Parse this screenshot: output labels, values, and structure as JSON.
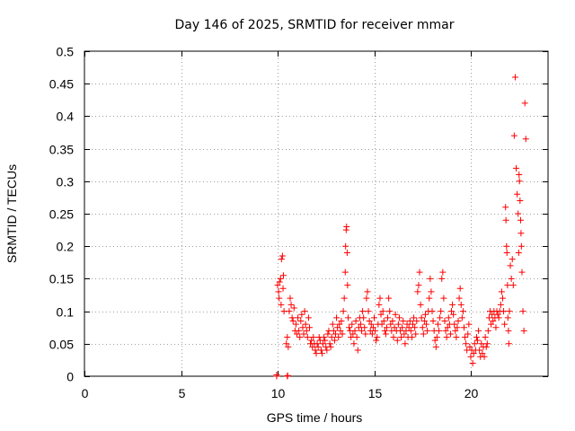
{
  "chart_data": {
    "type": "scatter",
    "title": "Day 146 of 2025, SRMTID for receiver mmar",
    "xlabel": "GPS time / hours",
    "ylabel": "SRMTID / TECUs",
    "xlim": [
      0,
      24
    ],
    "ylim": [
      0,
      0.5
    ],
    "x_ticks": [
      0,
      5,
      10,
      15,
      20
    ],
    "y_ticks": [
      0,
      0.05,
      0.1,
      0.15,
      0.2,
      0.25,
      0.3,
      0.35,
      0.4,
      0.45,
      0.5
    ],
    "x_tick_labels": [
      "0",
      "5",
      "10",
      "15",
      "20"
    ],
    "y_tick_labels": [
      "0",
      "0.05",
      "0.1",
      "0.15",
      "0.2",
      "0.25",
      "0.3",
      "0.35",
      "0.4",
      "0.45",
      "0.5"
    ],
    "grid": true,
    "marker": "+",
    "color": "#ff0000",
    "series": [
      {
        "name": "SRMTID",
        "points": [
          [
            9.95,
            0.0
          ],
          [
            10.5,
            0.0
          ],
          [
            9.95,
            0.002
          ],
          [
            10.52,
            0.001
          ],
          [
            10.0,
            0.14
          ],
          [
            10.05,
            0.13
          ],
          [
            10.1,
            0.145
          ],
          [
            10.15,
            0.15
          ],
          [
            10.2,
            0.18
          ],
          [
            10.25,
            0.185
          ],
          [
            10.3,
            0.155
          ],
          [
            10.08,
            0.12
          ],
          [
            10.18,
            0.11
          ],
          [
            10.28,
            0.135
          ],
          [
            10.33,
            0.1
          ],
          [
            10.45,
            0.05
          ],
          [
            10.5,
            0.06
          ],
          [
            10.55,
            0.045
          ],
          [
            10.6,
            0.1
          ],
          [
            10.65,
            0.12
          ],
          [
            10.7,
            0.11
          ],
          [
            10.75,
            0.09
          ],
          [
            10.8,
            0.085
          ],
          [
            10.85,
            0.105
          ],
          [
            10.9,
            0.07
          ],
          [
            10.95,
            0.08
          ],
          [
            11.0,
            0.065
          ],
          [
            11.05,
            0.09
          ],
          [
            11.1,
            0.07
          ],
          [
            11.15,
            0.06
          ],
          [
            11.2,
            0.085
          ],
          [
            11.25,
            0.095
          ],
          [
            11.3,
            0.075
          ],
          [
            11.35,
            0.065
          ],
          [
            11.4,
            0.1
          ],
          [
            11.45,
            0.08
          ],
          [
            11.5,
            0.07
          ],
          [
            11.55,
            0.06
          ],
          [
            11.6,
            0.09
          ],
          [
            11.65,
            0.075
          ],
          [
            11.7,
            0.05
          ],
          [
            11.75,
            0.055
          ],
          [
            11.8,
            0.045
          ],
          [
            11.85,
            0.06
          ],
          [
            11.9,
            0.05
          ],
          [
            11.95,
            0.04
          ],
          [
            12.0,
            0.035
          ],
          [
            12.05,
            0.05
          ],
          [
            12.1,
            0.045
          ],
          [
            12.15,
            0.06
          ],
          [
            12.2,
            0.055
          ],
          [
            12.25,
            0.04
          ],
          [
            12.3,
            0.035
          ],
          [
            12.35,
            0.05
          ],
          [
            12.4,
            0.06
          ],
          [
            12.45,
            0.055
          ],
          [
            12.5,
            0.045
          ],
          [
            12.55,
            0.04
          ],
          [
            12.6,
            0.065
          ],
          [
            12.65,
            0.07
          ],
          [
            12.7,
            0.05
          ],
          [
            12.75,
            0.045
          ],
          [
            12.8,
            0.06
          ],
          [
            12.85,
            0.08
          ],
          [
            12.9,
            0.07
          ],
          [
            12.95,
            0.055
          ],
          [
            13.0,
            0.065
          ],
          [
            13.05,
            0.09
          ],
          [
            13.1,
            0.075
          ],
          [
            13.15,
            0.06
          ],
          [
            13.2,
            0.08
          ],
          [
            13.25,
            0.07
          ],
          [
            13.3,
            0.085
          ],
          [
            13.35,
            0.065
          ],
          [
            13.4,
            0.1
          ],
          [
            13.45,
            0.12
          ],
          [
            13.5,
            0.16
          ],
          [
            13.52,
            0.2
          ],
          [
            13.55,
            0.225
          ],
          [
            13.57,
            0.23
          ],
          [
            13.6,
            0.19
          ],
          [
            13.62,
            0.14
          ],
          [
            13.65,
            0.09
          ],
          [
            13.7,
            0.075
          ],
          [
            13.75,
            0.07
          ],
          [
            13.8,
            0.06
          ],
          [
            13.85,
            0.08
          ],
          [
            13.9,
            0.065
          ],
          [
            13.95,
            0.05
          ],
          [
            14.0,
            0.07
          ],
          [
            14.05,
            0.085
          ],
          [
            14.1,
            0.06
          ],
          [
            14.15,
            0.04
          ],
          [
            14.2,
            0.075
          ],
          [
            14.25,
            0.09
          ],
          [
            14.3,
            0.08
          ],
          [
            14.35,
            0.07
          ],
          [
            14.4,
            0.1
          ],
          [
            14.45,
            0.09
          ],
          [
            14.5,
            0.075
          ],
          [
            14.55,
            0.065
          ],
          [
            14.6,
            0.12
          ],
          [
            14.65,
            0.13
          ],
          [
            14.7,
            0.1
          ],
          [
            14.75,
            0.085
          ],
          [
            14.8,
            0.07
          ],
          [
            14.85,
            0.08
          ],
          [
            14.9,
            0.065
          ],
          [
            14.95,
            0.075
          ],
          [
            15.0,
            0.09
          ],
          [
            15.05,
            0.07
          ],
          [
            15.1,
            0.055
          ],
          [
            15.15,
            0.06
          ],
          [
            15.2,
            0.08
          ],
          [
            15.25,
            0.11
          ],
          [
            15.3,
            0.12
          ],
          [
            15.35,
            0.095
          ],
          [
            15.4,
            0.08
          ],
          [
            15.45,
            0.1
          ],
          [
            15.5,
            0.085
          ],
          [
            15.55,
            0.07
          ],
          [
            15.6,
            0.065
          ],
          [
            15.65,
            0.075
          ],
          [
            15.7,
            0.09
          ],
          [
            15.75,
            0.12
          ],
          [
            15.8,
            0.1
          ],
          [
            15.85,
            0.08
          ],
          [
            15.9,
            0.07
          ],
          [
            15.95,
            0.085
          ],
          [
            16.0,
            0.06
          ],
          [
            16.05,
            0.075
          ],
          [
            16.1,
            0.095
          ],
          [
            16.15,
            0.07
          ],
          [
            16.2,
            0.055
          ],
          [
            16.25,
            0.08
          ],
          [
            16.3,
            0.09
          ],
          [
            16.35,
            0.07
          ],
          [
            16.4,
            0.06
          ],
          [
            16.45,
            0.075
          ],
          [
            16.5,
            0.085
          ],
          [
            16.55,
            0.065
          ],
          [
            16.6,
            0.05
          ],
          [
            16.65,
            0.07
          ],
          [
            16.7,
            0.08
          ],
          [
            16.75,
            0.06
          ],
          [
            16.8,
            0.075
          ],
          [
            16.85,
            0.085
          ],
          [
            16.9,
            0.07
          ],
          [
            16.95,
            0.06
          ],
          [
            17.0,
            0.08
          ],
          [
            17.05,
            0.09
          ],
          [
            17.1,
            0.075
          ],
          [
            17.15,
            0.065
          ],
          [
            17.2,
            0.085
          ],
          [
            17.25,
            0.13
          ],
          [
            17.3,
            0.14
          ],
          [
            17.35,
            0.16
          ],
          [
            17.4,
            0.11
          ],
          [
            17.45,
            0.09
          ],
          [
            17.5,
            0.075
          ],
          [
            17.55,
            0.065
          ],
          [
            17.6,
            0.085
          ],
          [
            17.65,
            0.095
          ],
          [
            17.7,
            0.08
          ],
          [
            17.75,
            0.07
          ],
          [
            17.8,
            0.1
          ],
          [
            17.85,
            0.12
          ],
          [
            17.9,
            0.15
          ],
          [
            17.95,
            0.13
          ],
          [
            18.0,
            0.1
          ],
          [
            18.05,
            0.085
          ],
          [
            18.1,
            0.07
          ],
          [
            18.15,
            0.055
          ],
          [
            18.2,
            0.045
          ],
          [
            18.25,
            0.06
          ],
          [
            18.3,
            0.08
          ],
          [
            18.35,
            0.07
          ],
          [
            18.4,
            0.09
          ],
          [
            18.45,
            0.1
          ],
          [
            18.5,
            0.15
          ],
          [
            18.55,
            0.16
          ],
          [
            18.6,
            0.12
          ],
          [
            18.65,
            0.085
          ],
          [
            18.7,
            0.07
          ],
          [
            18.75,
            0.06
          ],
          [
            18.8,
            0.075
          ],
          [
            18.85,
            0.09
          ],
          [
            18.9,
            0.08
          ],
          [
            18.95,
            0.065
          ],
          [
            19.0,
            0.1
          ],
          [
            19.05,
            0.11
          ],
          [
            19.1,
            0.095
          ],
          [
            19.15,
            0.08
          ],
          [
            19.2,
            0.07
          ],
          [
            19.25,
            0.06
          ],
          [
            19.3,
            0.075
          ],
          [
            19.35,
            0.085
          ],
          [
            19.4,
            0.12
          ],
          [
            19.45,
            0.135
          ],
          [
            19.5,
            0.11
          ],
          [
            19.55,
            0.09
          ],
          [
            19.6,
            0.1
          ],
          [
            19.65,
            0.075
          ],
          [
            19.7,
            0.06
          ],
          [
            19.75,
            0.05
          ],
          [
            19.8,
            0.04
          ],
          [
            19.85,
            0.065
          ],
          [
            19.9,
            0.08
          ],
          [
            19.95,
            0.045
          ],
          [
            20.0,
            0.03
          ],
          [
            20.05,
            0.04
          ],
          [
            20.1,
            0.02
          ],
          [
            20.15,
            0.035
          ],
          [
            20.2,
            0.05
          ],
          [
            20.25,
            0.04
          ],
          [
            20.3,
            0.06
          ],
          [
            20.35,
            0.055
          ],
          [
            20.4,
            0.07
          ],
          [
            20.45,
            0.04
          ],
          [
            20.5,
            0.03
          ],
          [
            20.55,
            0.05
          ],
          [
            20.6,
            0.035
          ],
          [
            20.65,
            0.045
          ],
          [
            20.7,
            0.03
          ],
          [
            20.75,
            0.06
          ],
          [
            20.8,
            0.045
          ],
          [
            20.85,
            0.05
          ],
          [
            20.9,
            0.07
          ],
          [
            20.95,
            0.09
          ],
          [
            21.0,
            0.1
          ],
          [
            21.05,
            0.08
          ],
          [
            21.1,
            0.095
          ],
          [
            21.15,
            0.085
          ],
          [
            21.2,
            0.1
          ],
          [
            21.25,
            0.09
          ],
          [
            21.3,
            0.075
          ],
          [
            21.35,
            0.1
          ],
          [
            21.4,
            0.095
          ],
          [
            21.45,
            0.09
          ],
          [
            21.5,
            0.1
          ],
          [
            21.55,
            0.11
          ],
          [
            21.6,
            0.13
          ],
          [
            21.65,
            0.12
          ],
          [
            21.7,
            0.1
          ],
          [
            21.75,
            0.08
          ],
          [
            21.8,
            0.26
          ],
          [
            21.82,
            0.24
          ],
          [
            21.85,
            0.2
          ],
          [
            21.87,
            0.19
          ],
          [
            21.9,
            0.14
          ],
          [
            21.92,
            0.09
          ],
          [
            21.95,
            0.07
          ],
          [
            21.97,
            0.05
          ],
          [
            22.0,
            0.1
          ],
          [
            22.05,
            0.17
          ],
          [
            22.1,
            0.15
          ],
          [
            22.15,
            0.18
          ],
          [
            22.2,
            0.14
          ],
          [
            22.25,
            0.37
          ],
          [
            22.3,
            0.46
          ],
          [
            22.35,
            0.32
          ],
          [
            22.4,
            0.28
          ],
          [
            22.45,
            0.25
          ],
          [
            22.5,
            0.31
          ],
          [
            22.55,
            0.27
          ],
          [
            22.6,
            0.22
          ],
          [
            22.65,
            0.16
          ],
          [
            22.7,
            0.1
          ],
          [
            22.75,
            0.07
          ],
          [
            22.8,
            0.42
          ],
          [
            22.85,
            0.365
          ],
          [
            22.52,
            0.3
          ],
          [
            22.58,
            0.24
          ],
          [
            22.62,
            0.2
          ],
          [
            22.48,
            0.19
          ]
        ]
      }
    ]
  }
}
